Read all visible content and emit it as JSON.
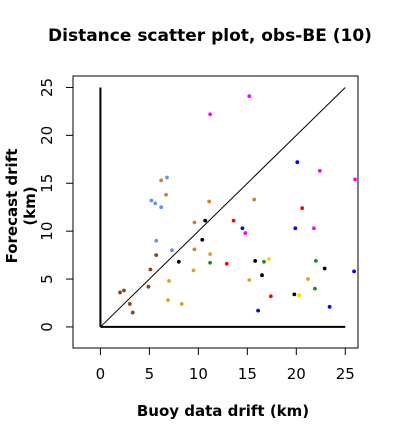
{
  "chart_data": {
    "type": "scatter",
    "title": "Distance scatter plot, obs-BE (10)",
    "xlabel": "Buoy data drift (km)",
    "ylabel": "Forecast drift (km)",
    "xlim": [
      -2.8,
      26.3
    ],
    "ylim": [
      -2.2,
      26.2
    ],
    "xticks": [
      0,
      5,
      10,
      15,
      20,
      25
    ],
    "yticks": [
      0,
      5,
      10,
      15,
      20,
      25
    ],
    "grid": false,
    "reference_lines": [
      {
        "type": "diagonal",
        "from": [
          0,
          0
        ],
        "to": [
          25,
          25
        ]
      },
      {
        "type": "vertical",
        "from": [
          0,
          0
        ],
        "to": [
          0,
          25
        ]
      },
      {
        "type": "horizontal",
        "from": [
          0,
          0
        ],
        "to": [
          25,
          0
        ]
      }
    ],
    "points": [
      {
        "x": 2.0,
        "y": 3.6,
        "color": "#8b4513"
      },
      {
        "x": 2.4,
        "y": 3.8,
        "color": "#8b4513"
      },
      {
        "x": 3.0,
        "y": 2.4,
        "color": "#8b4513"
      },
      {
        "x": 3.3,
        "y": 1.5,
        "color": "#8b4513"
      },
      {
        "x": 4.9,
        "y": 4.2,
        "color": "#8b4513"
      },
      {
        "x": 5.1,
        "y": 6.0,
        "color": "#8b4513"
      },
      {
        "x": 5.7,
        "y": 7.5,
        "color": "#8b4513"
      },
      {
        "x": 5.2,
        "y": 13.2,
        "color": "#6495ed"
      },
      {
        "x": 5.6,
        "y": 12.9,
        "color": "#6495ed"
      },
      {
        "x": 5.7,
        "y": 9.0,
        "color": "#6495ed"
      },
      {
        "x": 6.2,
        "y": 12.5,
        "color": "#6495ed"
      },
      {
        "x": 6.8,
        "y": 15.6,
        "color": "#6495ed"
      },
      {
        "x": 7.3,
        "y": 8.0,
        "color": "#6495ed"
      },
      {
        "x": 6.2,
        "y": 15.3,
        "color": "#cd7f32"
      },
      {
        "x": 6.7,
        "y": 13.8,
        "color": "#cd7f32"
      },
      {
        "x": 6.9,
        "y": 2.8,
        "color": "#daa520"
      },
      {
        "x": 7.0,
        "y": 4.8,
        "color": "#daa520"
      },
      {
        "x": 8.3,
        "y": 2.4,
        "color": "#daa520"
      },
      {
        "x": 8.0,
        "y": 6.8,
        "color": "#000000"
      },
      {
        "x": 9.5,
        "y": 5.9,
        "color": "#daa520"
      },
      {
        "x": 9.6,
        "y": 8.1,
        "color": "#cd7f32"
      },
      {
        "x": 9.6,
        "y": 10.9,
        "color": "#cd7f32"
      },
      {
        "x": 10.4,
        "y": 9.1,
        "color": "#000000"
      },
      {
        "x": 10.7,
        "y": 11.1,
        "color": "#000000"
      },
      {
        "x": 11.1,
        "y": 13.1,
        "color": "#cd7f32"
      },
      {
        "x": 11.2,
        "y": 7.6,
        "color": "#daa520"
      },
      {
        "x": 11.2,
        "y": 6.7,
        "color": "#228b22"
      },
      {
        "x": 11.2,
        "y": 22.2,
        "color": "#ff00ff"
      },
      {
        "x": 12.9,
        "y": 6.6,
        "color": "#ff0000"
      },
      {
        "x": 13.6,
        "y": 11.1,
        "color": "#ff0000"
      },
      {
        "x": 14.5,
        "y": 10.3,
        "color": "#0000ff"
      },
      {
        "x": 14.8,
        "y": 9.8,
        "color": "#ff00ff"
      },
      {
        "x": 15.2,
        "y": 24.1,
        "color": "#ff00ff"
      },
      {
        "x": 15.2,
        "y": 4.9,
        "color": "#daa520"
      },
      {
        "x": 15.7,
        "y": 13.3,
        "color": "#cd7f32"
      },
      {
        "x": 15.8,
        "y": 6.9,
        "color": "#000000"
      },
      {
        "x": 16.1,
        "y": 1.7,
        "color": "#0000ff"
      },
      {
        "x": 16.5,
        "y": 5.4,
        "color": "#000000"
      },
      {
        "x": 16.7,
        "y": 6.8,
        "color": "#228b22"
      },
      {
        "x": 17.2,
        "y": 7.1,
        "color": "#ffd700"
      },
      {
        "x": 17.4,
        "y": 3.2,
        "color": "#ff0000"
      },
      {
        "x": 19.8,
        "y": 3.4,
        "color": "#000000"
      },
      {
        "x": 19.9,
        "y": 10.3,
        "color": "#0000ff"
      },
      {
        "x": 20.1,
        "y": 17.2,
        "color": "#0000ff"
      },
      {
        "x": 20.3,
        "y": 3.3,
        "color": "#ffd700"
      },
      {
        "x": 20.6,
        "y": 12.4,
        "color": "#ff0000"
      },
      {
        "x": 21.2,
        "y": 5.0,
        "color": "#daa520"
      },
      {
        "x": 21.8,
        "y": 10.3,
        "color": "#ff00ff"
      },
      {
        "x": 21.9,
        "y": 4.0,
        "color": "#228b22"
      },
      {
        "x": 22.0,
        "y": 6.9,
        "color": "#228b22"
      },
      {
        "x": 22.4,
        "y": 16.3,
        "color": "#ff00ff"
      },
      {
        "x": 22.9,
        "y": 6.1,
        "color": "#000000"
      },
      {
        "x": 23.4,
        "y": 2.1,
        "color": "#0000ff"
      },
      {
        "x": 26.0,
        "y": 15.4,
        "color": "#ff00ff"
      },
      {
        "x": 25.9,
        "y": 5.8,
        "color": "#0000ff"
      }
    ]
  }
}
